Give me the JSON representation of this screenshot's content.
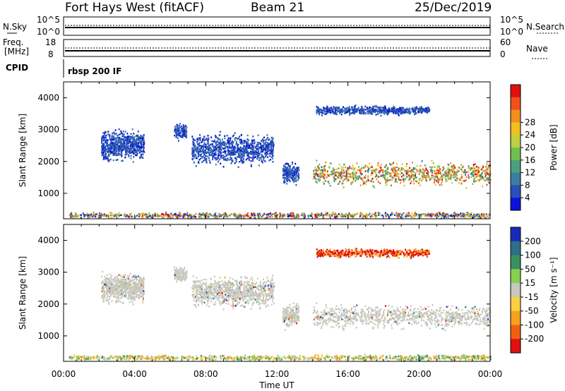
{
  "header": {
    "site": "Fort Hays West (fitACF)",
    "beam": "Beam 21",
    "date": "25/Dec/2019"
  },
  "noise_panel": {
    "left_label": "N.Sky",
    "left_ticks": [
      "10^5",
      "10^0"
    ],
    "right_ticks": [
      "10^5",
      "10^0"
    ],
    "right_label": "N.Search"
  },
  "freq_panel": {
    "left_label_1": "Freq.",
    "left_label_2": "[MHz]",
    "left_ticks": [
      "18",
      "8"
    ],
    "right_ticks": [
      "60",
      "0"
    ],
    "right_label": "Nave"
  },
  "cpid": {
    "label": "CPID",
    "value": "rbsp 200 IF"
  },
  "time_axis": {
    "label": "Time UT",
    "ticks": [
      "00:00",
      "04:00",
      "08:00",
      "12:00",
      "16:00",
      "20:00",
      "00:00"
    ]
  },
  "chart_data": [
    {
      "type": "heatmap",
      "panel": "power",
      "ylabel": "Slant Range [km]",
      "y_ticks": [
        1000,
        2000,
        3000,
        4000
      ],
      "ylim": [
        200,
        4500
      ],
      "xlim_hours": [
        0,
        24
      ],
      "colorbar": {
        "label": "Power [dB]",
        "ticks": [
          4,
          8,
          12,
          16,
          20,
          24,
          28
        ],
        "colors": [
          "#0a14d8",
          "#2a4fb8",
          "#3a7fa2",
          "#4aa07a",
          "#70c050",
          "#c0d040",
          "#f0c020",
          "#f09020",
          "#f05020",
          "#e01010"
        ]
      },
      "echo_regions": [
        {
          "t_start": 0.3,
          "t_end": 24,
          "range_min": 220,
          "range_max": 450,
          "level": "mixed"
        },
        {
          "t_start": 2.1,
          "t_end": 4.5,
          "range_min": 1950,
          "range_max": 3100,
          "level": "low"
        },
        {
          "t_start": 6.2,
          "t_end": 6.9,
          "range_min": 2600,
          "range_max": 3300,
          "level": "low"
        },
        {
          "t_start": 7.2,
          "t_end": 11.8,
          "range_min": 1800,
          "range_max": 3000,
          "level": "low"
        },
        {
          "t_start": 12.3,
          "t_end": 13.2,
          "range_min": 1200,
          "range_max": 2100,
          "level": "low"
        },
        {
          "t_start": 14.0,
          "t_end": 24.0,
          "range_min": 1150,
          "range_max": 2100,
          "level": "high"
        },
        {
          "t_start": 14.2,
          "t_end": 20.6,
          "range_min": 3450,
          "range_max": 3800,
          "level": "low"
        }
      ]
    },
    {
      "type": "heatmap",
      "panel": "velocity",
      "ylabel": "Slant Range [km]",
      "y_ticks": [
        1000,
        2000,
        3000,
        4000
      ],
      "ylim": [
        200,
        4500
      ],
      "xlim_hours": [
        0,
        24
      ],
      "colorbar": {
        "label": "Velocity [m s⁻¹]",
        "ticks": [
          200,
          100,
          50,
          15,
          -15,
          -50,
          -100,
          -200
        ],
        "colors": [
          "#1a2ab8",
          "#2d6f8a",
          "#3a9060",
          "#88d050",
          "#c8c8c0",
          "#f8d040",
          "#f8a020",
          "#f06010",
          "#e01010"
        ]
      },
      "echo_regions": [
        {
          "t_start": 0.3,
          "t_end": 24,
          "range_min": 220,
          "range_max": 450,
          "level": "mixed"
        },
        {
          "t_start": 2.1,
          "t_end": 4.5,
          "range_min": 1950,
          "range_max": 3100,
          "level": "grey"
        },
        {
          "t_start": 6.2,
          "t_end": 6.9,
          "range_min": 2600,
          "range_max": 3300,
          "level": "grey"
        },
        {
          "t_start": 7.2,
          "t_end": 11.8,
          "range_min": 1800,
          "range_max": 3000,
          "level": "grey"
        },
        {
          "t_start": 12.3,
          "t_end": 13.2,
          "range_min": 1200,
          "range_max": 2100,
          "level": "grey"
        },
        {
          "t_start": 14.0,
          "t_end": 24.0,
          "range_min": 1150,
          "range_max": 2100,
          "level": "grey"
        },
        {
          "t_start": 14.2,
          "t_end": 20.6,
          "range_min": 3450,
          "range_max": 3800,
          "level": "red"
        }
      ]
    }
  ]
}
